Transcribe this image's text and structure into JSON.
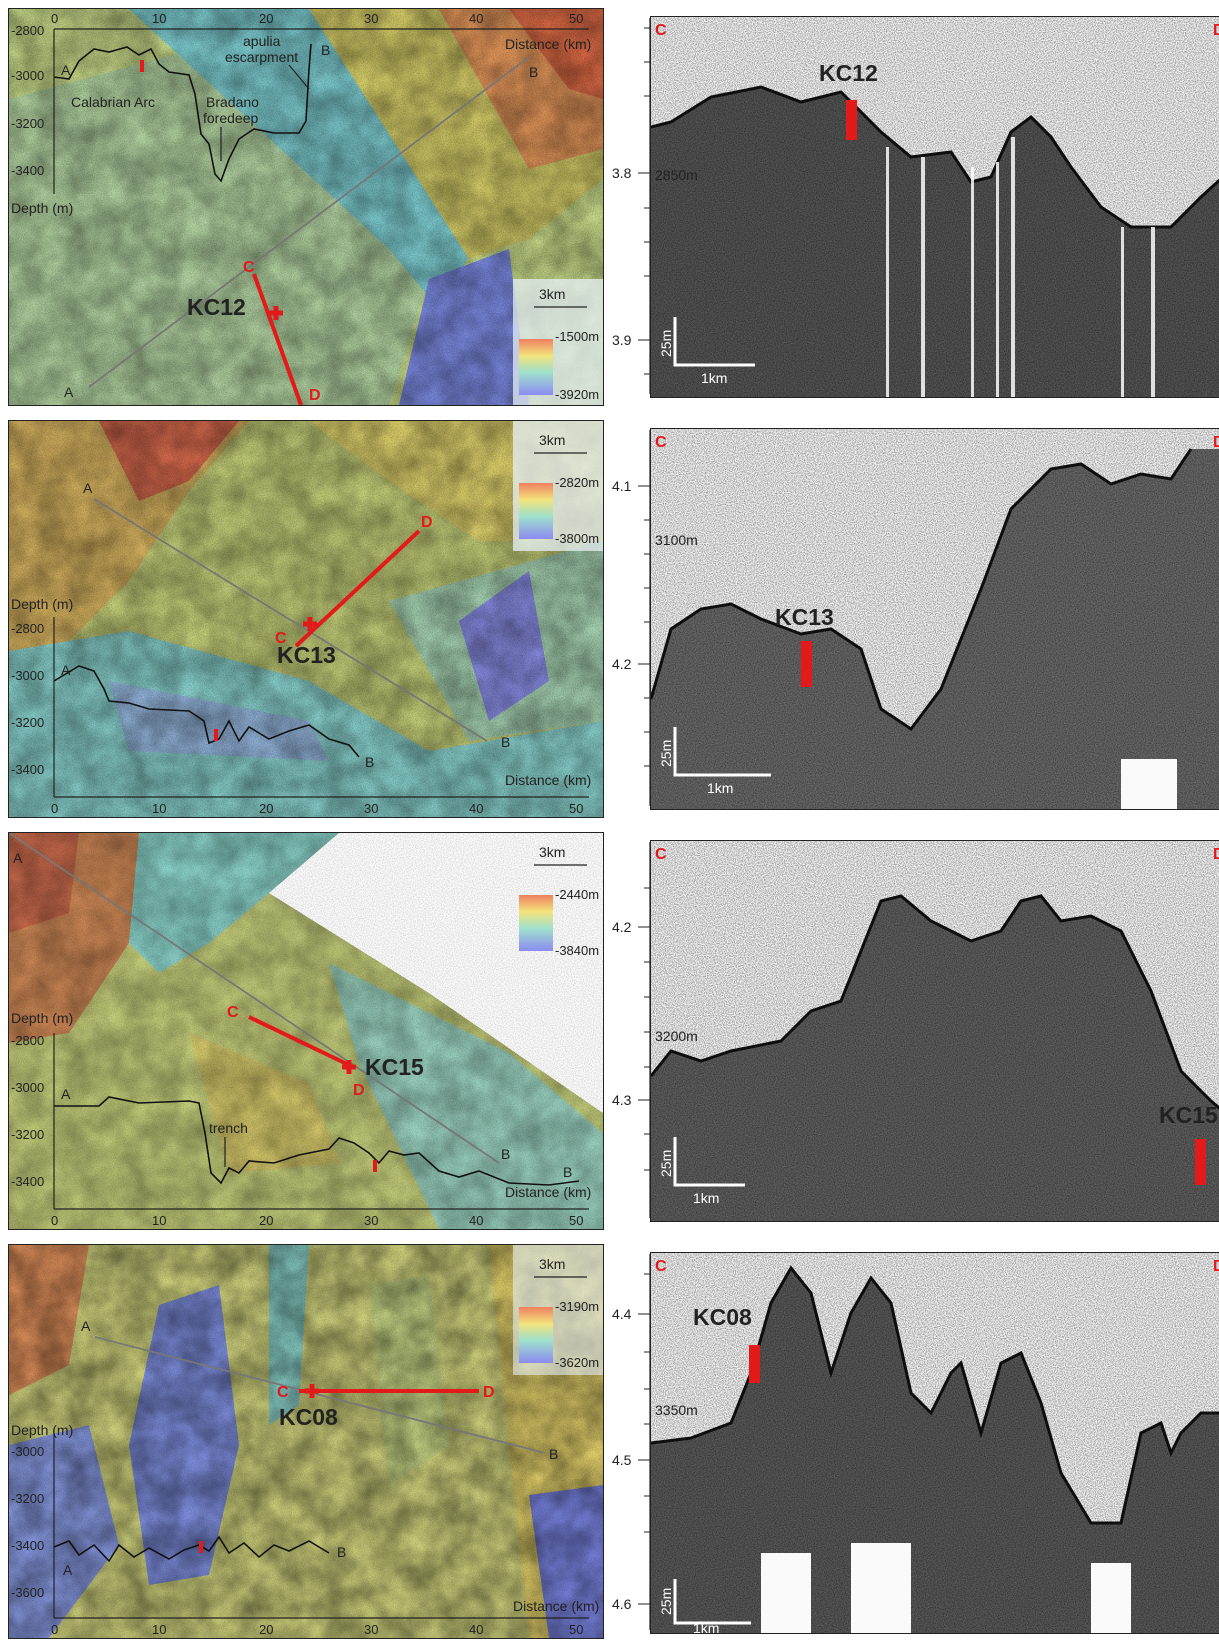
{
  "panels": [
    {
      "id": "kc12",
      "core_label": "KC12",
      "map": {
        "depth_axis_label": "Depth (m)",
        "depth_ticks": [
          "-2800",
          "-3000",
          "-3200",
          "-3400"
        ],
        "distance_ticks": [
          "0",
          "10",
          "20",
          "30",
          "40",
          "50"
        ],
        "distance_label": "Distance (km)",
        "scale_bar": "3km",
        "colorbar_max": "-1500m",
        "colorbar_min": "-3920m",
        "profile_start": "A",
        "profile_end": "B",
        "track_start": "C",
        "track_end": "D",
        "annotations": [
          "Calabrian Arc",
          "Bradano",
          "foredeep",
          "apulia",
          "escarpment"
        ]
      },
      "seismic": {
        "left_label": "C",
        "right_label": "D",
        "twt_ticks": [
          "3.8",
          "3.9"
        ],
        "depth_marker": "2850m",
        "vertical_scale": "25m",
        "horizontal_scale": "1km"
      }
    },
    {
      "id": "kc13",
      "core_label": "KC13",
      "map": {
        "depth_axis_label": "Depth (m)",
        "depth_ticks": [
          "-2800",
          "-3000",
          "-3200",
          "-3400"
        ],
        "distance_ticks": [
          "0",
          "10",
          "20",
          "30",
          "40",
          "50"
        ],
        "distance_label": "Distance (km)",
        "scale_bar": "3km",
        "colorbar_max": "-2820m",
        "colorbar_min": "-3800m",
        "profile_start": "A",
        "profile_end": "B",
        "track_start": "C",
        "track_end": "D"
      },
      "seismic": {
        "left_label": "C",
        "right_label": "D",
        "twt_ticks": [
          "4.1",
          "4.2"
        ],
        "depth_marker": "3100m",
        "vertical_scale": "25m",
        "horizontal_scale": "1km"
      }
    },
    {
      "id": "kc15",
      "core_label": "KC15",
      "map": {
        "depth_axis_label": "Depth (m)",
        "depth_ticks": [
          "-2800",
          "-3000",
          "-3200",
          "-3400"
        ],
        "distance_ticks": [
          "0",
          "10",
          "20",
          "30",
          "40",
          "50"
        ],
        "distance_label": "Distance (km)",
        "scale_bar": "3km",
        "colorbar_max": "-2440m",
        "colorbar_min": "-3840m",
        "profile_start": "A",
        "profile_end": "B",
        "track_start": "C",
        "track_end": "D",
        "annotations": [
          "trench"
        ]
      },
      "seismic": {
        "left_label": "C",
        "right_label": "D",
        "twt_ticks": [
          "4.2",
          "4.3"
        ],
        "depth_marker": "3200m",
        "vertical_scale": "25m",
        "horizontal_scale": "1km"
      }
    },
    {
      "id": "kc08",
      "core_label": "KC08",
      "map": {
        "depth_axis_label": "Depth (m)",
        "depth_ticks": [
          "-3000",
          "-3200",
          "-3400",
          "-3600"
        ],
        "distance_ticks": [
          "0",
          "10",
          "20",
          "30",
          "40",
          "50"
        ],
        "distance_label": "Distance (km)",
        "scale_bar": "3km",
        "colorbar_max": "-3190m",
        "colorbar_min": "-3620m",
        "profile_start": "A",
        "profile_end": "B",
        "track_start": "C",
        "track_end": "D"
      },
      "seismic": {
        "left_label": "C",
        "right_label": "D",
        "twt_ticks": [
          "4.4",
          "4.5",
          "4.6"
        ],
        "depth_marker": "3350m",
        "vertical_scale": "25m",
        "horizontal_scale": "1km"
      }
    }
  ],
  "colors": {
    "track": "#e21a1a",
    "profile_line": "#777777",
    "deep": "#8a8cf0",
    "mid": "#8fdad0",
    "shallow": "#f1e27a",
    "high": "#e07a55"
  }
}
